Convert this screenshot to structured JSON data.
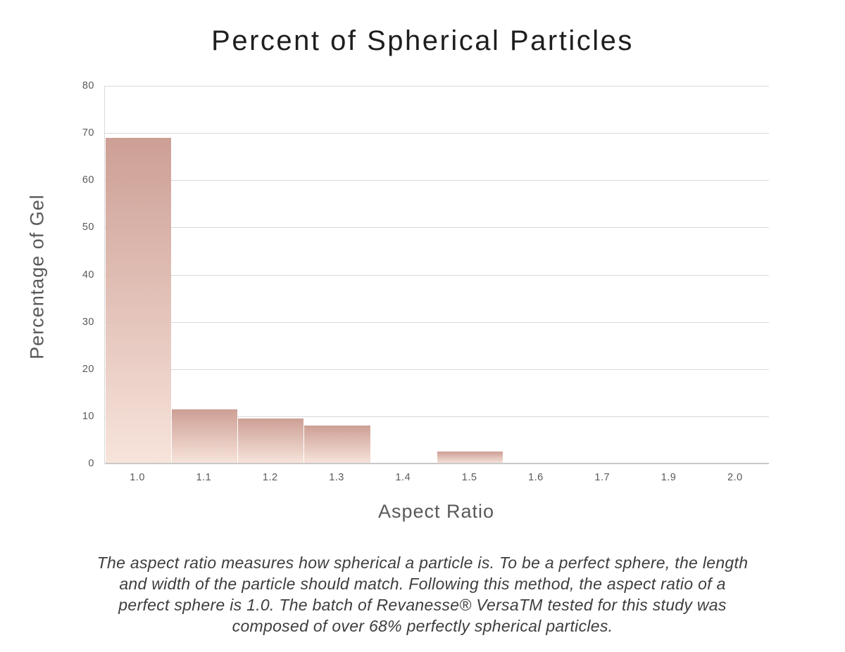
{
  "chart_data": {
    "type": "bar",
    "title": "Percent of Spherical Particles",
    "xlabel": "Aspect Ratio",
    "ylabel": "Percentage of Gel",
    "categories": [
      "1.0",
      "1.1",
      "1.2",
      "1.3",
      "1.4",
      "1.5",
      "1.6",
      "1.7",
      "1.9",
      "2.0"
    ],
    "values": [
      69,
      11.5,
      9.5,
      8,
      0,
      2.5,
      0,
      0,
      0,
      0
    ],
    "ylim": [
      0,
      80
    ],
    "ytick_step": 10,
    "yticks": [
      0,
      10,
      20,
      30,
      40,
      50,
      60,
      70,
      80
    ],
    "grid": "horizontal",
    "legend": "none",
    "colors": {
      "bar_gradient_top": "#cd9f95",
      "bar_gradient_bottom": "#f7e4db",
      "gridline": "#d9d9d9",
      "axis_line": "#c9c9c9",
      "tick_label": "#595959",
      "axis_title": "#595959",
      "title": "#1e1e1e",
      "background": "#ffffff"
    }
  },
  "caption": {
    "color": "#3d3d3d",
    "lines": [
      "The aspect ratio measures how spherical a particle is. To be a perfect sphere, the length",
      "and width of the particle should match. Following this method, the aspect ratio of a",
      "perfect sphere is 1.0. The batch of Revanesse® VersaTM tested for this study was",
      "composed of over 68% perfectly spherical particles."
    ]
  }
}
